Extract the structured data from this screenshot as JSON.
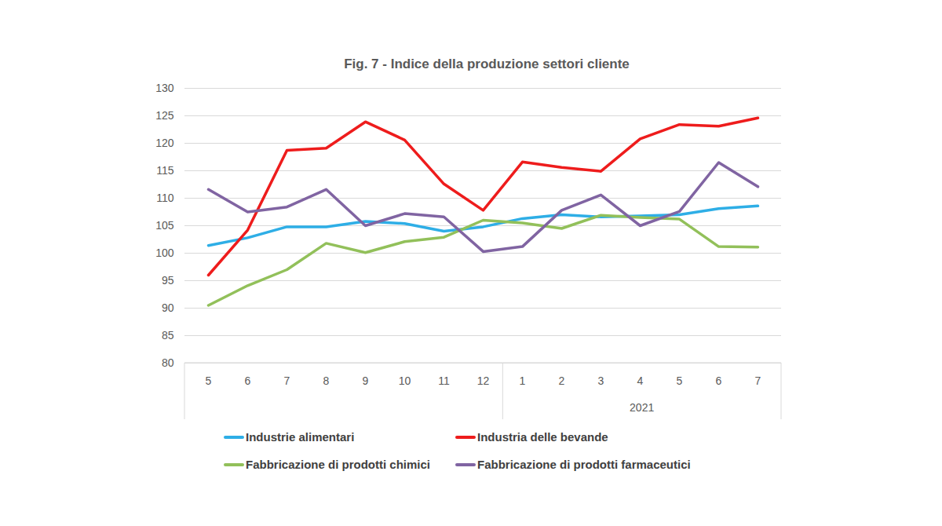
{
  "chart_data": {
    "type": "line",
    "title": "Fig. 7 - Indice della produzione settori cliente",
    "categories": [
      "5",
      "6",
      "7",
      "8",
      "9",
      "10",
      "11",
      "12",
      "1",
      "2",
      "3",
      "4",
      "5",
      "6",
      "7"
    ],
    "x_groups": [
      {
        "label": null,
        "size": 8
      },
      {
        "label": "2021",
        "size": 7
      }
    ],
    "series": [
      {
        "name": "Industrie alimentari",
        "color": "#2eaee6",
        "values": [
          101.4,
          102.8,
          104.8,
          104.8,
          105.8,
          105.4,
          104.0,
          104.8,
          106.3,
          107.0,
          106.6,
          106.8,
          107.0,
          108.1,
          108.6
        ]
      },
      {
        "name": "Industria delle bevande",
        "color": "#ee1c1c",
        "values": [
          96.0,
          104.2,
          118.7,
          119.1,
          123.9,
          120.6,
          112.6,
          107.8,
          116.6,
          115.6,
          114.9,
          120.8,
          123.4,
          123.1,
          124.6
        ]
      },
      {
        "name": "Fabbricazione di prodotti chimici",
        "color": "#92c05a",
        "values": [
          90.5,
          94.1,
          97.0,
          101.8,
          100.1,
          102.1,
          102.9,
          106.0,
          105.5,
          104.5,
          106.9,
          106.5,
          106.2,
          101.2,
          101.1
        ]
      },
      {
        "name": "Fabbricazione di prodotti farmaceutici",
        "color": "#8064a2",
        "values": [
          111.6,
          107.5,
          108.4,
          111.6,
          105.0,
          107.2,
          106.6,
          100.3,
          101.2,
          107.8,
          110.6,
          105.0,
          107.6,
          116.5,
          112.1
        ]
      }
    ],
    "ylim": [
      80,
      130
    ],
    "yticks": [
      80,
      85,
      90,
      95,
      100,
      105,
      110,
      115,
      120,
      125,
      130
    ],
    "grid": true,
    "legend": "bottom"
  }
}
